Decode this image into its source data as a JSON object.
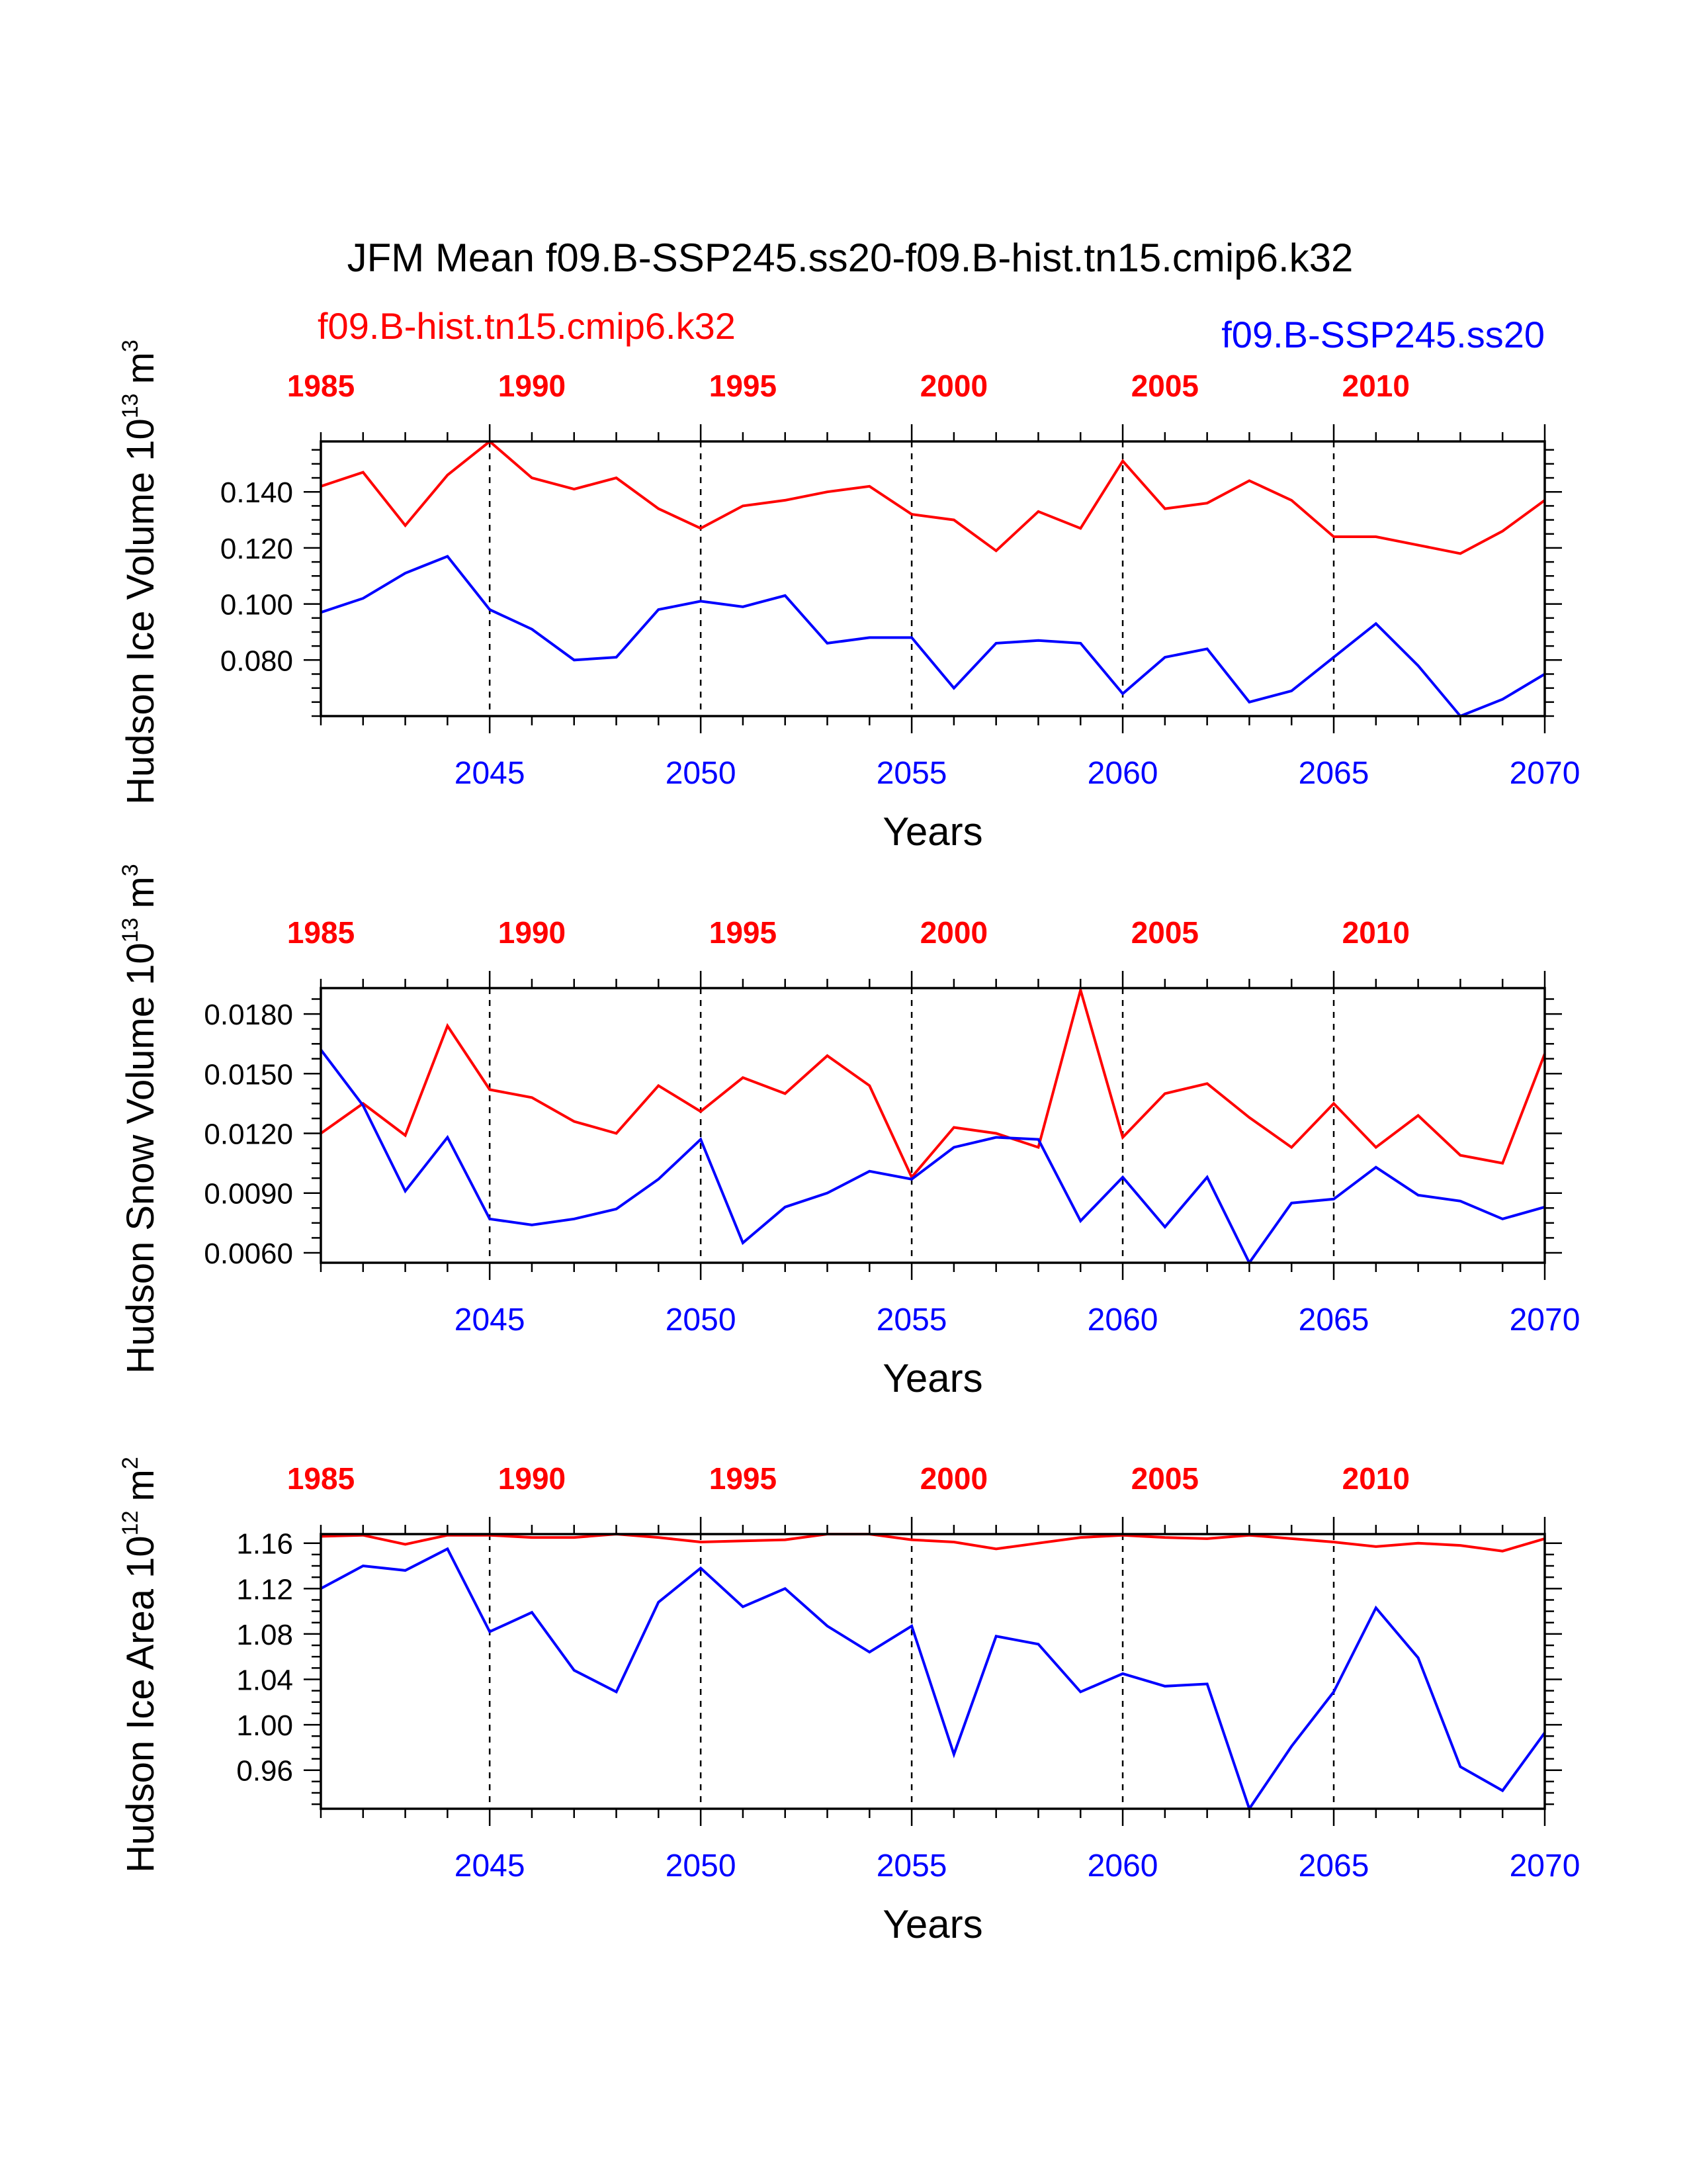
{
  "title": "JFM Mean f09.B-SSP245.ss20-f09.B-hist.tn15.cmip6.k32",
  "legend": {
    "red_label": "f09.B-hist.tn15.cmip6.k32",
    "blue_label": "f09.B-SSP245.ss20"
  },
  "colors": {
    "red": "#ff0000",
    "blue": "#0000ff",
    "axis": "#000000"
  },
  "chart_data": [
    {
      "type": "line",
      "ylabel": {
        "main": "Hudson Ice Volume 10",
        "exp": "13",
        "unit": "m",
        "unit_exp": "3"
      },
      "xlabel": "Years",
      "ylim": [
        0.06,
        0.158
      ],
      "y_ticks": [
        0.08,
        0.1,
        0.12,
        0.14
      ],
      "y_tick_labels": [
        "0.080",
        "0.100",
        "0.120",
        "0.140"
      ],
      "y_minor_step": 0.005,
      "x_bottom": {
        "range": [
          2041,
          2070
        ],
        "labels": [
          "2045",
          "2050",
          "2055",
          "2060",
          "2065",
          "2070"
        ]
      },
      "x_top": {
        "range": [
          1985,
          2014
        ],
        "labels": [
          "1985",
          "1990",
          "1995",
          "2000",
          "2005",
          "2010"
        ]
      },
      "series": [
        {
          "name": "f09.B-hist.tn15.cmip6.k32",
          "color": "red",
          "values": [
            0.142,
            0.147,
            0.128,
            0.146,
            0.158,
            0.145,
            0.141,
            0.145,
            0.134,
            0.127,
            0.135,
            0.137,
            0.14,
            0.142,
            0.132,
            0.13,
            0.119,
            0.133,
            0.127,
            0.151,
            0.134,
            0.136,
            0.144,
            0.137,
            0.124,
            0.124,
            0.121,
            0.118,
            0.126,
            0.137
          ]
        },
        {
          "name": "f09.B-SSP245.ss20",
          "color": "blue",
          "values": [
            0.097,
            0.102,
            0.111,
            0.117,
            0.098,
            0.091,
            0.08,
            0.081,
            0.098,
            0.101,
            0.099,
            0.103,
            0.086,
            0.088,
            0.088,
            0.07,
            0.086,
            0.087,
            0.086,
            0.068,
            0.081,
            0.084,
            0.065,
            0.069,
            0.081,
            0.093,
            0.078,
            0.06,
            0.066,
            0.075
          ]
        }
      ]
    },
    {
      "type": "line",
      "ylabel": {
        "main": "Hudson Snow Volume 10",
        "exp": "13",
        "unit": "m",
        "unit_exp": "3"
      },
      "xlabel": "Years",
      "ylim": [
        0.0055,
        0.0193
      ],
      "y_ticks": [
        0.006,
        0.009,
        0.012,
        0.015,
        0.018
      ],
      "y_tick_labels": [
        "0.0060",
        "0.0090",
        "0.0120",
        "0.0150",
        "0.0180"
      ],
      "y_minor_step": 0.00075,
      "x_bottom": {
        "range": [
          2041,
          2070
        ],
        "labels": [
          "2045",
          "2050",
          "2055",
          "2060",
          "2065",
          "2070"
        ]
      },
      "x_top": {
        "range": [
          1985,
          2014
        ],
        "labels": [
          "1985",
          "1990",
          "1995",
          "2000",
          "2005",
          "2010"
        ]
      },
      "series": [
        {
          "name": "f09.B-hist.tn15.cmip6.k32",
          "color": "red",
          "values": [
            0.012,
            0.0135,
            0.0119,
            0.0174,
            0.0142,
            0.0138,
            0.0126,
            0.012,
            0.0144,
            0.0131,
            0.0148,
            0.014,
            0.0159,
            0.0144,
            0.0098,
            0.0123,
            0.012,
            0.0113,
            0.0192,
            0.0118,
            0.014,
            0.0145,
            0.0128,
            0.0113,
            0.0135,
            0.0113,
            0.0129,
            0.0109,
            0.0105,
            0.016
          ]
        },
        {
          "name": "f09.B-SSP245.ss20",
          "color": "blue",
          "values": [
            0.0162,
            0.0134,
            0.0091,
            0.0118,
            0.0077,
            0.0074,
            0.0077,
            0.0082,
            0.0097,
            0.0117,
            0.0065,
            0.0083,
            0.009,
            0.0101,
            0.0097,
            0.0113,
            0.0118,
            0.0117,
            0.0076,
            0.0098,
            0.0073,
            0.0098,
            0.0055,
            0.0085,
            0.0087,
            0.0103,
            0.0089,
            0.0086,
            0.0077,
            0.0083
          ]
        }
      ]
    },
    {
      "type": "line",
      "ylabel": {
        "main": "Hudson Ice Area 10",
        "exp": "12",
        "unit": "m",
        "unit_exp": "2"
      },
      "xlabel": "Years",
      "ylim": [
        0.926,
        1.168
      ],
      "y_ticks": [
        0.96,
        1.0,
        1.04,
        1.08,
        1.12,
        1.16
      ],
      "y_tick_labels": [
        "0.96",
        "1.00",
        "1.04",
        "1.08",
        "1.12",
        "1.16"
      ],
      "y_minor_step": 0.01,
      "x_bottom": {
        "range": [
          2041,
          2070
        ],
        "labels": [
          "2045",
          "2050",
          "2055",
          "2060",
          "2065",
          "2070"
        ]
      },
      "x_top": {
        "range": [
          1985,
          2014
        ],
        "labels": [
          "1985",
          "1990",
          "1995",
          "2000",
          "2005",
          "2010"
        ]
      },
      "series": [
        {
          "name": "f09.B-hist.tn15.cmip6.k32",
          "color": "red",
          "values": [
            1.166,
            1.167,
            1.159,
            1.167,
            1.167,
            1.165,
            1.165,
            1.168,
            1.165,
            1.161,
            1.162,
            1.163,
            1.168,
            1.168,
            1.163,
            1.161,
            1.155,
            1.16,
            1.165,
            1.167,
            1.165,
            1.164,
            1.167,
            1.164,
            1.161,
            1.157,
            1.16,
            1.158,
            1.153,
            1.164
          ]
        },
        {
          "name": "f09.B-SSP245.ss20",
          "color": "blue",
          "values": [
            1.12,
            1.14,
            1.136,
            1.155,
            1.082,
            1.099,
            1.048,
            1.029,
            1.108,
            1.138,
            1.104,
            1.12,
            1.087,
            1.064,
            1.087,
            0.974,
            1.078,
            1.071,
            1.029,
            1.045,
            1.034,
            1.036,
            0.926,
            0.981,
            1.029,
            1.103,
            1.059,
            0.963,
            0.942,
            0.993
          ]
        }
      ]
    }
  ]
}
